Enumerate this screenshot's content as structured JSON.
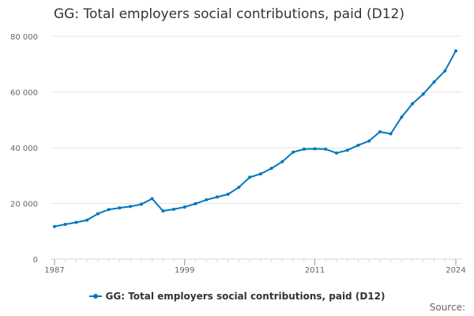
{
  "chart_data": {
    "type": "line",
    "title": "GG: Total employers social contributions, paid (D12)",
    "xlabel": "",
    "ylabel": "",
    "x_ticks": [
      "1987",
      "1999",
      "2011",
      "2024"
    ],
    "y_ticks": [
      "0",
      "20 000",
      "40 000",
      "60 000",
      "80 000"
    ],
    "xlim": [
      1987,
      2024
    ],
    "ylim": [
      0,
      80000
    ],
    "grid": true,
    "legend_position": "bottom",
    "series": [
      {
        "name": "GG: Total employers social contributions, paid (D12)",
        "color": "#0077bb",
        "x": [
          1987,
          1988,
          1989,
          1990,
          1991,
          1992,
          1993,
          1994,
          1995,
          1996,
          1997,
          1998,
          1999,
          2000,
          2001,
          2002,
          2003,
          2004,
          2005,
          2006,
          2007,
          2008,
          2009,
          2010,
          2011,
          2012,
          2013,
          2014,
          2015,
          2016,
          2017,
          2018,
          2019,
          2020,
          2021,
          2022,
          2023,
          2024
        ],
        "values": [
          11700,
          12500,
          13200,
          14000,
          16300,
          17800,
          18400,
          18900,
          19700,
          21700,
          17300,
          17900,
          18700,
          19900,
          21300,
          22300,
          23300,
          25800,
          29400,
          30600,
          32600,
          35000,
          38400,
          39500,
          39600,
          39500,
          38100,
          39100,
          40900,
          42400,
          45700,
          45000,
          51000,
          55800,
          59300,
          63600,
          67600,
          74800
        ]
      }
    ]
  },
  "footer": {
    "source_label": "Source:"
  }
}
